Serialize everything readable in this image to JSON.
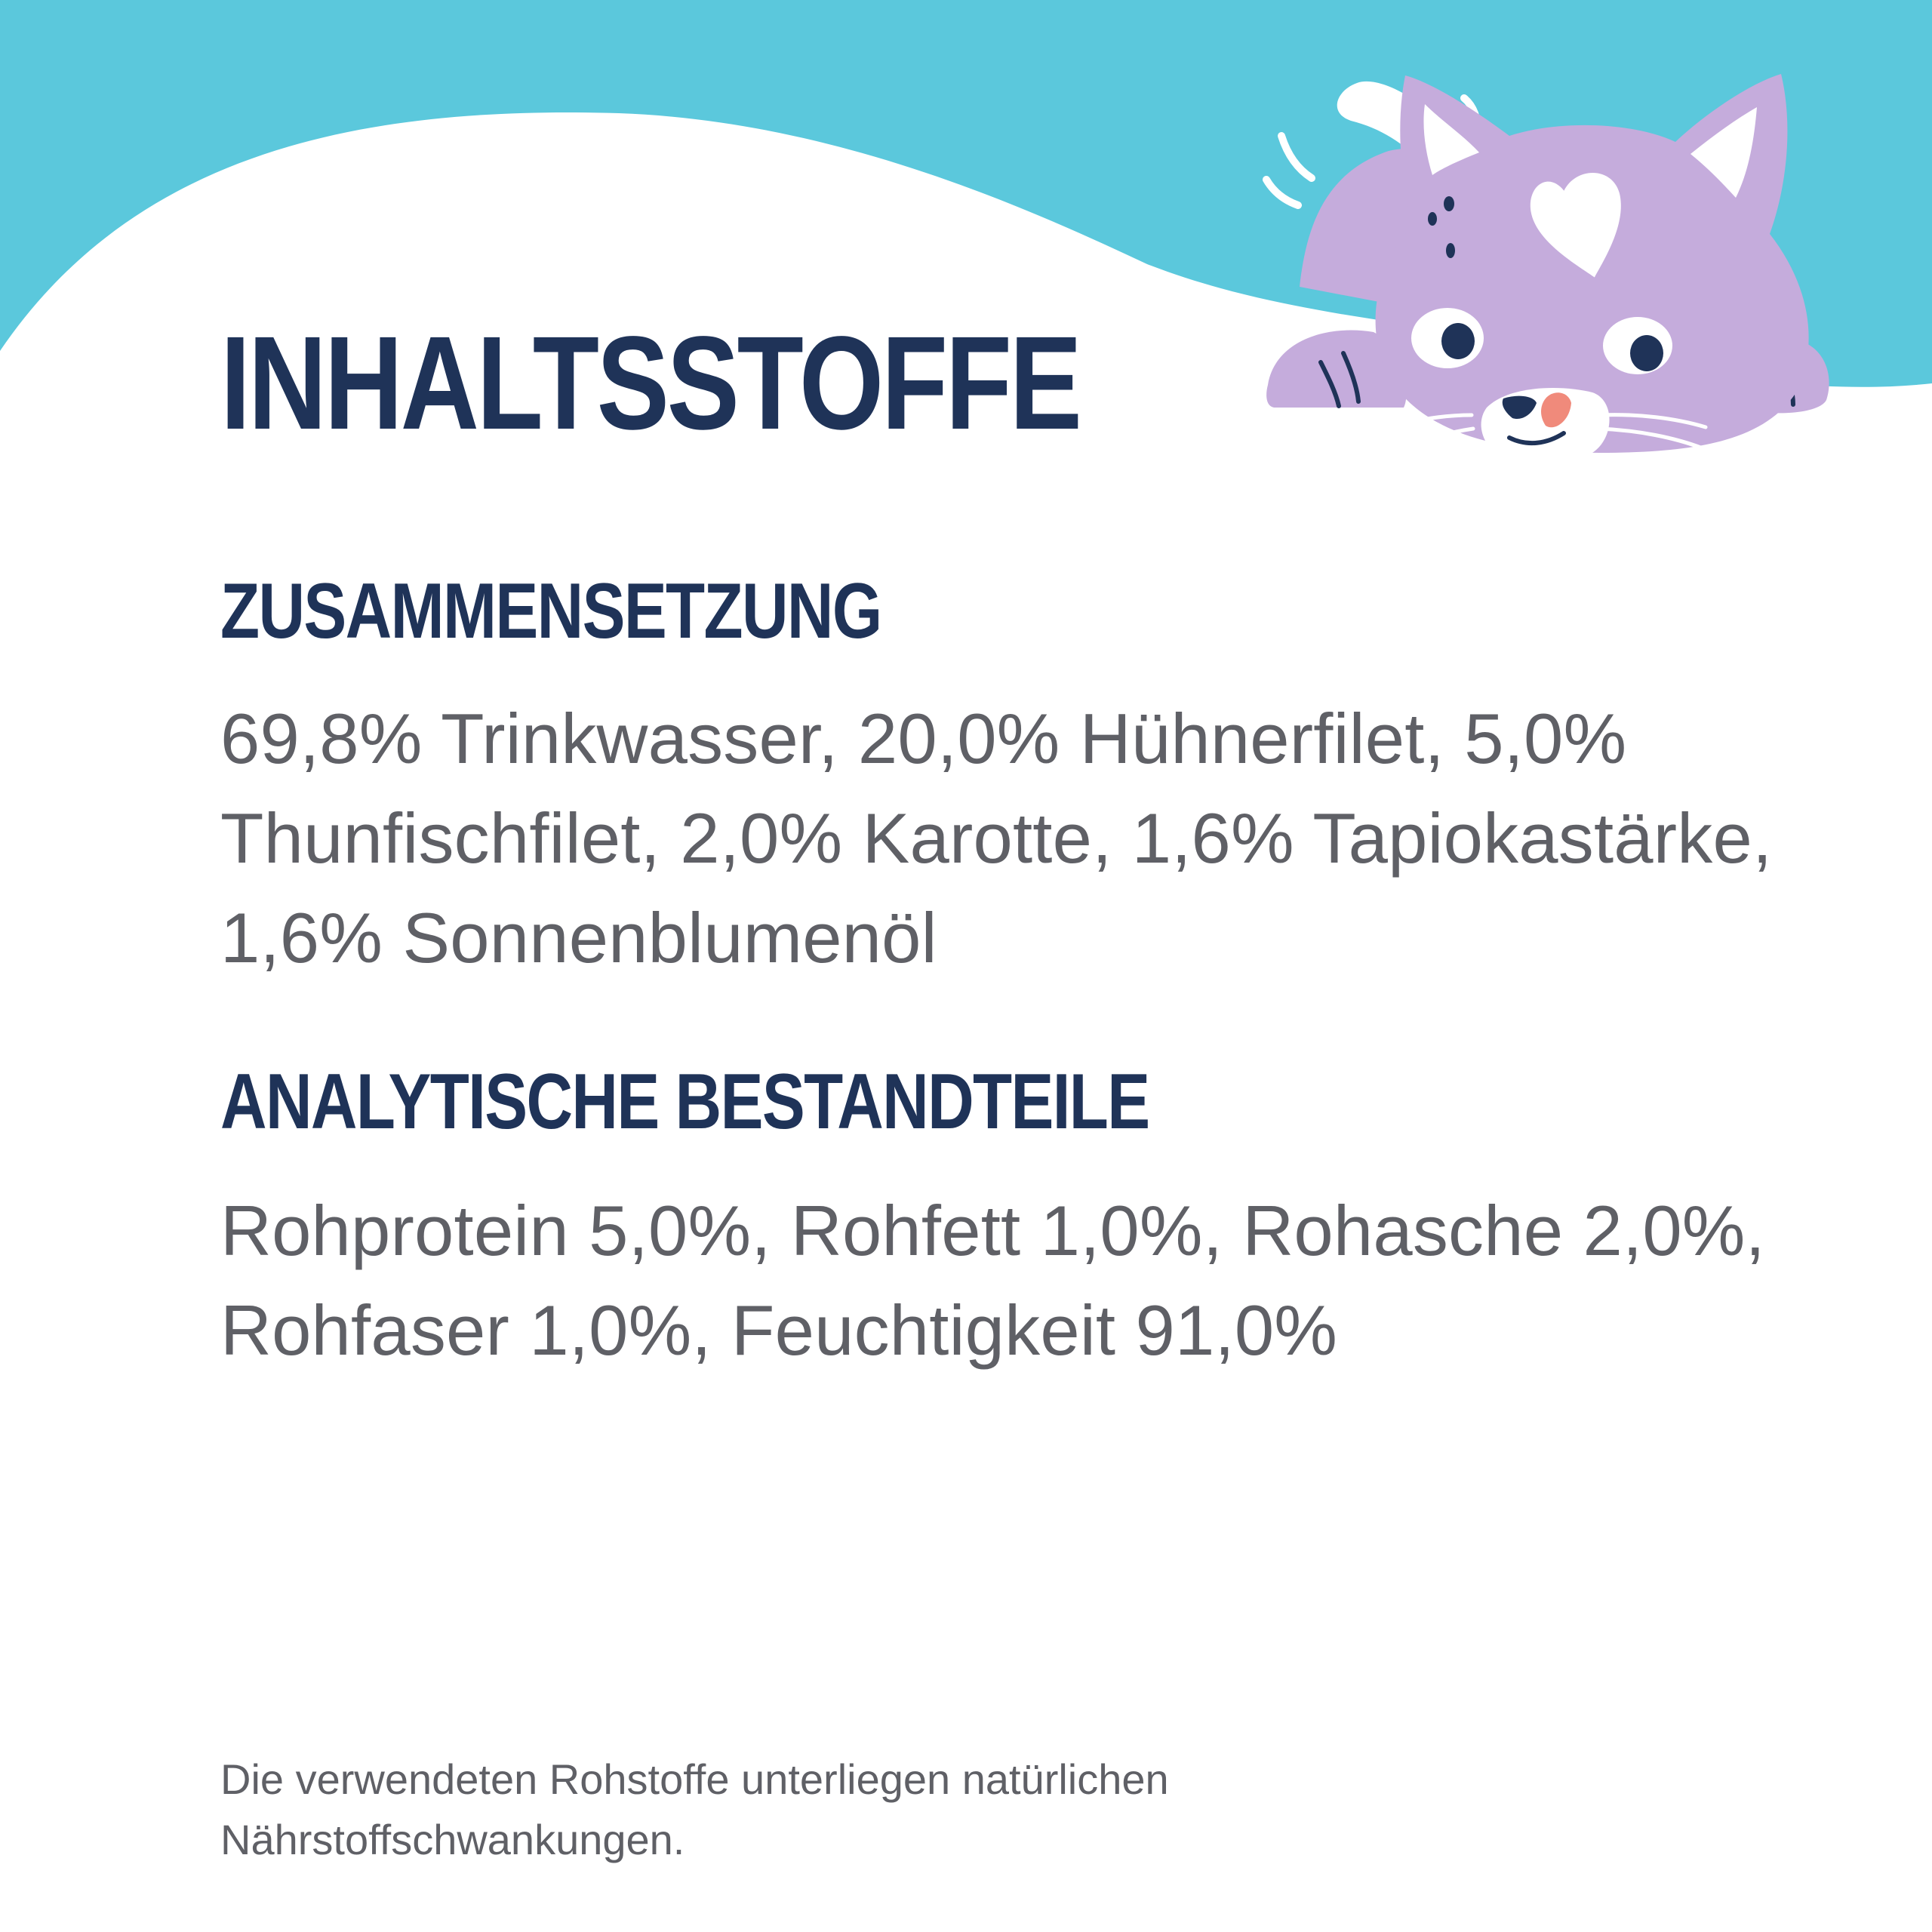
{
  "colors": {
    "background": "#ffffff",
    "top_band": "#5bc8dc",
    "heading": "#1f3358",
    "body_text": "#5f6066",
    "cat_fur": "#c5acdc",
    "cat_detail": "#1f3358",
    "cat_tongue": "#f08a7b"
  },
  "header": {
    "title": "INHALTSSTOFFE"
  },
  "sections": [
    {
      "heading": "ZUSAMMENSETZUNG",
      "text": "69,8% Trinkwasser, 20,0% Hühnerfilet, 5,0% Thunfischfilet, 2,0% Karotte, 1,6% Tapiokastärke, 1,6% Sonnenblumenöl"
    },
    {
      "heading": "ANALYTISCHE BESTANDTEILE",
      "text": "Rohprotein 5,0%, Rohfett 1,0%, Rohasche 2,0%, Rohfaser 1,0%, Feuchtigkeit 91,0%"
    }
  ],
  "footer": {
    "note": "Die verwendeten Rohstoffe unterliegen natürlichen Nährstoffschwankungen."
  },
  "illustration": {
    "icon": "cat-peeking-icon"
  }
}
